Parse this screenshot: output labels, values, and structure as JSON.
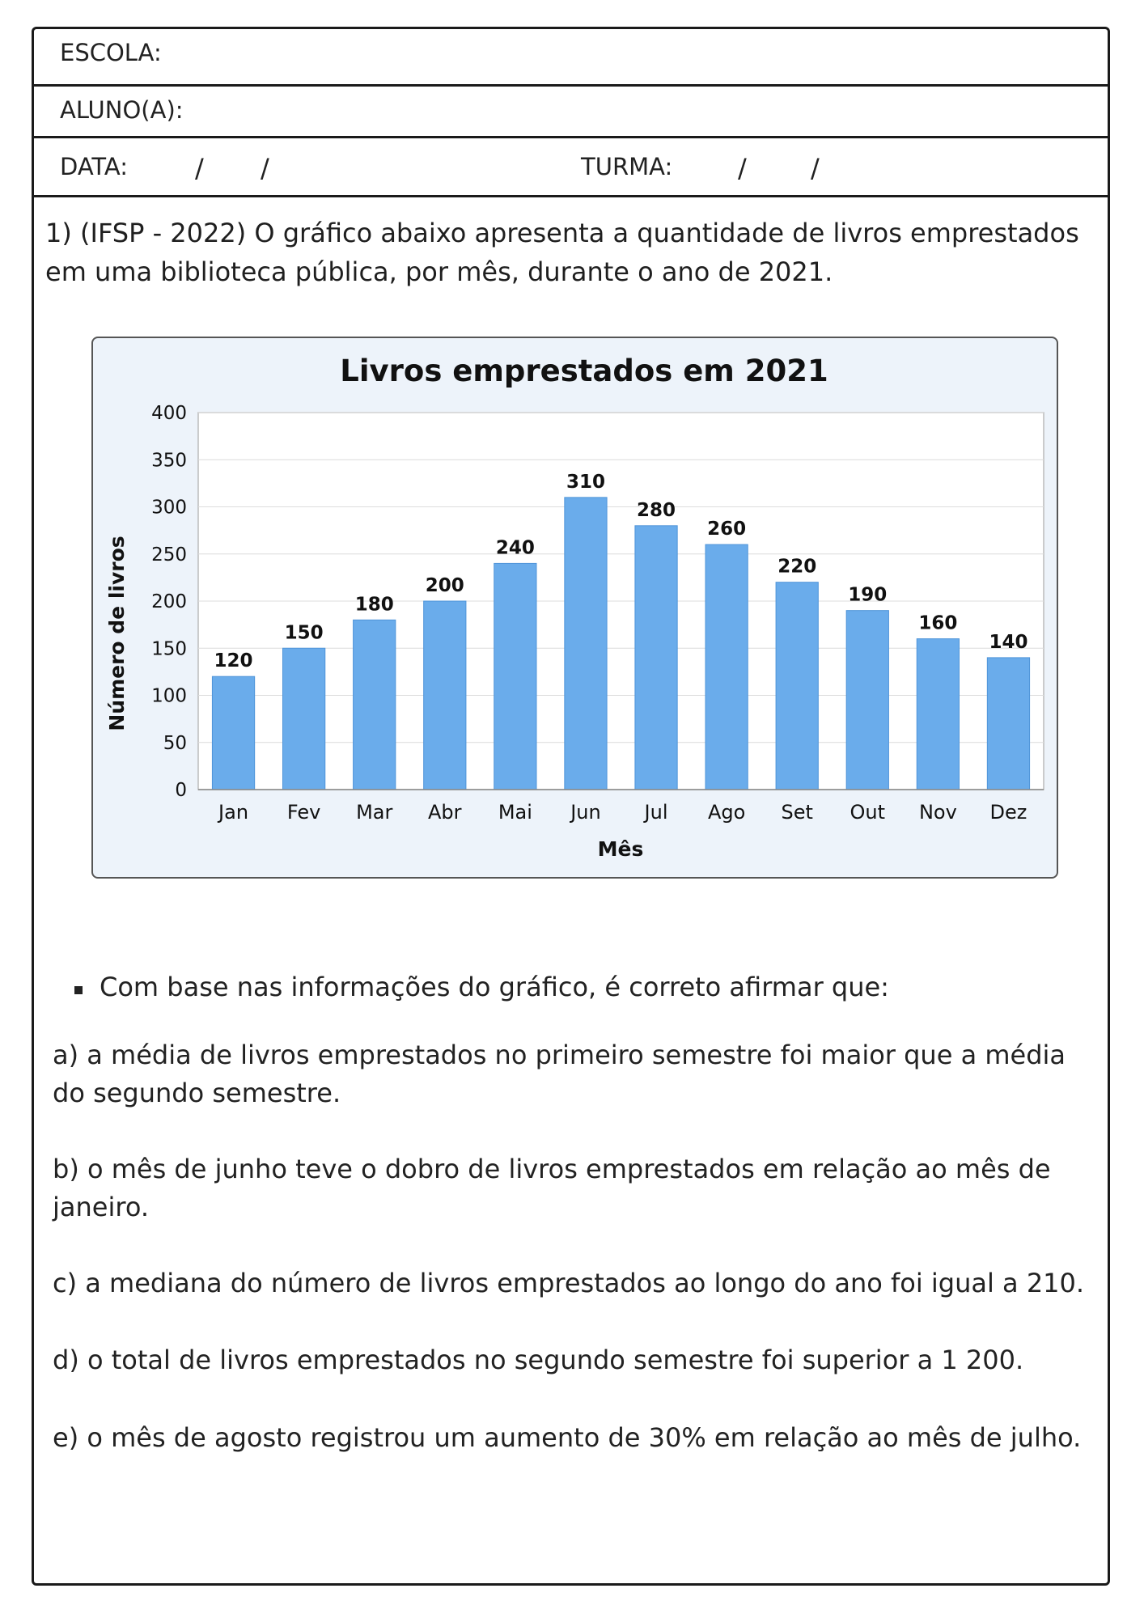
{
  "header": {
    "escola_label": "ESCOLA:",
    "aluno_label": "ALUNO(A):",
    "data_label": "DATA:",
    "turma_label": "TURMA:",
    "slash": "/"
  },
  "question": {
    "text": "1) (IFSP - 2022) O gráfico abaixo apresenta a quantidade de livros emprestados em uma biblioteca pública, por mês, durante o ano de 2021."
  },
  "chart_data": {
    "type": "bar",
    "title": "Livros emprestados em 2021",
    "xlabel": "Mês",
    "ylabel": "Número de livros",
    "categories": [
      "Jan",
      "Fev",
      "Mar",
      "Abr",
      "Mai",
      "Jun",
      "Jul",
      "Ago",
      "Set",
      "Out",
      "Nov",
      "Dez"
    ],
    "values": [
      120,
      150,
      180,
      200,
      240,
      310,
      280,
      260,
      220,
      190,
      160,
      140
    ],
    "ylim": [
      0,
      400
    ],
    "yticks": [
      0,
      50,
      100,
      150,
      200,
      250,
      300,
      350,
      400
    ],
    "grid": true,
    "bar_color": "#6aaceb",
    "bar_edge_color": "#4f94d9",
    "background_color": "#edf3fa"
  },
  "prompt": {
    "text": "Com base nas informações do gráfico, é correto afirmar que:"
  },
  "options": {
    "a": "a) a média de livros emprestados no primeiro semestre foi maior que a média do segundo semestre.",
    "b": "b) o mês de junho teve o dobro de livros emprestados em relação ao mês de janeiro.",
    "c": "c) a mediana do número de livros emprestados ao longo do ano foi igual a 210.",
    "d": "d) o total de livros emprestados no segundo semestre foi superior a 1 200.",
    "e": "e) o mês de agosto registrou um aumento de 30% em relação ao mês de julho."
  }
}
